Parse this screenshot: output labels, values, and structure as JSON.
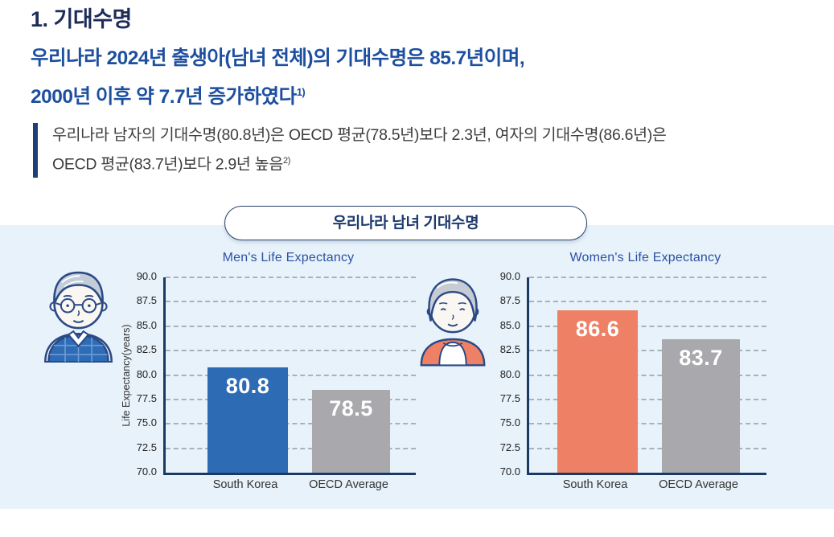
{
  "page": {
    "title": "1. 기대수명",
    "headline_line1": "우리나라 2024년 출생아(남녀 전체)의 기대수명은 85.7년이며,",
    "headline_line2": "2000년 이후 약 7.7년 증가하였다",
    "headline_footnote": "1)",
    "quote_line1": "우리나라 남자의 기대수명(80.8년)은 OECD 평균(78.5년)보다 2.3년, 여자의 기대수명(86.6년)은",
    "quote_line2": "OECD 평균(83.7년)보다 2.9년 높음",
    "quote_footnote": "2)",
    "section_pill": "우리나라 남녀 기대수명"
  },
  "illustrations": {
    "left": "elderly-man",
    "right": "elderly-woman"
  },
  "colors": {
    "title_navy": "#1d2c58",
    "headline_blue": "#1d4f9f",
    "quote_bar_navy": "#1e3f77",
    "band_background": "#e8f2fa",
    "chart_title_blue": "#2b51a3",
    "axis_navy": "#1b3a63",
    "bar_blue": "#2d6cb4",
    "bar_coral": "#ee8165",
    "bar_gray": "#a9a9ad",
    "gridline_gray": "#a8b2ba"
  },
  "chart_data": [
    {
      "type": "bar",
      "title": "Men's Life Expectancy",
      "categories": [
        "South Korea",
        "OECD Average"
      ],
      "values": [
        80.8,
        78.5
      ],
      "bar_colors": [
        "#2d6cb4",
        "#a9a9ad"
      ],
      "xlabel": "",
      "ylabel": "Life Expectancy(years)",
      "ylim": [
        70.0,
        90.0
      ],
      "ytick_step": 2.5,
      "grid": true,
      "legend": false
    },
    {
      "type": "bar",
      "title": "Women's Life Expectancy",
      "categories": [
        "South Korea",
        "OECD Average"
      ],
      "values": [
        86.6,
        83.7
      ],
      "bar_colors": [
        "#ee8165",
        "#a9a9ad"
      ],
      "xlabel": "",
      "ylabel": "",
      "ylim": [
        70.0,
        90.0
      ],
      "ytick_step": 2.5,
      "grid": true,
      "legend": false
    }
  ]
}
